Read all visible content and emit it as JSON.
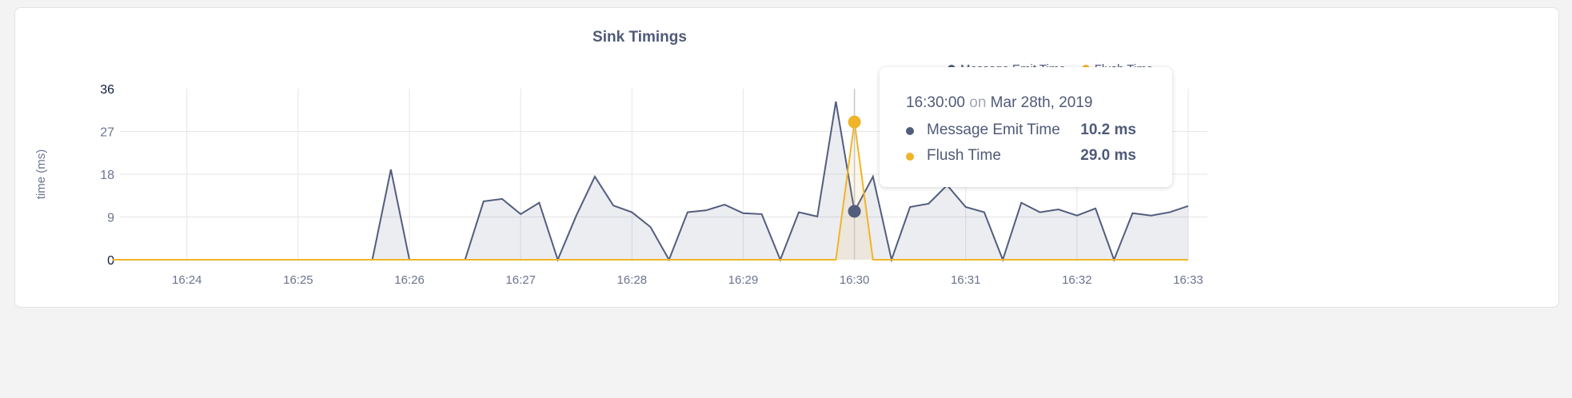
{
  "chart_data": {
    "type": "area",
    "title": "Sink Timings",
    "ylabel": "time (ms)",
    "xlabel": "",
    "ylim": [
      0,
      36
    ],
    "yticks": [
      "0",
      "9",
      "18",
      "27",
      "36"
    ],
    "xlim": [
      "16:23:20",
      "16:33:00"
    ],
    "xticks": [
      "16:24",
      "16:25",
      "16:26",
      "16:27",
      "16:28",
      "16:29",
      "16:30",
      "16:31",
      "16:32",
      "16:33"
    ],
    "x_interval_seconds": 10,
    "grid": true,
    "legend_position": "top-right",
    "series": [
      {
        "name": "Message Emit Time",
        "color": "#525d7d",
        "values": [
          0,
          0,
          0,
          0,
          0,
          0,
          0,
          0,
          0,
          0,
          0,
          0,
          0,
          0,
          0,
          19,
          0,
          0,
          0,
          0,
          12.3,
          12.8,
          9.6,
          12,
          0,
          9.3,
          17.5,
          11.4,
          10,
          6.9,
          0,
          10,
          10.4,
          11.6,
          9.8,
          9.6,
          0,
          10,
          9.1,
          33.3,
          10.2,
          17.5,
          0,
          11.1,
          11.8,
          15.7,
          11.1,
          10,
          0,
          12,
          10,
          10.6,
          9.3,
          10.8,
          0,
          9.8,
          9.3,
          10,
          11.3
        ]
      },
      {
        "name": "Flush Time",
        "color": "#f0b429",
        "values": [
          0,
          0,
          0,
          0,
          0,
          0,
          0,
          0,
          0,
          0,
          0,
          0,
          0,
          0,
          0,
          0,
          0,
          0,
          0,
          0,
          0,
          0,
          0,
          0,
          0,
          0,
          0,
          0,
          0,
          0,
          0,
          0,
          0,
          0,
          0,
          0,
          0,
          0,
          0,
          0,
          29.0,
          0,
          0,
          0,
          0,
          0,
          0,
          0,
          0,
          0,
          0,
          0,
          0,
          0,
          0,
          0,
          0,
          0,
          0
        ]
      }
    ],
    "tooltip": {
      "time": "16:30:00",
      "on": "on",
      "date": "Mar 28th, 2019",
      "rows": [
        {
          "label": "Message Emit Time",
          "value": "10.2 ms"
        },
        {
          "label": "Flush Time",
          "value": "29.0 ms"
        }
      ]
    }
  }
}
